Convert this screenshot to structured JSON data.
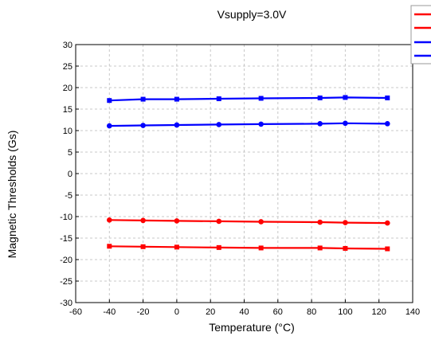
{
  "chart_data": {
    "type": "line",
    "title": "Vsupply=3.0V",
    "xlabel": "Temperature (°C)",
    "ylabel": "Magnetic Thresholds (Gs)",
    "xlim": [
      -60,
      140
    ],
    "ylim": [
      -30,
      30
    ],
    "x_ticks": [
      "-60",
      "-40",
      "-20",
      "0",
      "20",
      "40",
      "60",
      "80",
      "100",
      "120",
      "140"
    ],
    "y_ticks": [
      "30",
      "25",
      "20",
      "15",
      "10",
      "5",
      "0",
      "-5",
      "-10",
      "-15",
      "-20",
      "-25",
      "-30"
    ],
    "grid": true,
    "legend_position": "top-right",
    "series": [
      {
        "color": "#0000ff",
        "marker": "square",
        "x": [
          -40,
          -20,
          0,
          25,
          50,
          85,
          100,
          125
        ],
        "values": [
          17.0,
          17.3,
          17.3,
          17.4,
          17.5,
          17.6,
          17.7,
          17.6
        ]
      },
      {
        "color": "#0000ff",
        "marker": "circle",
        "x": [
          -40,
          -20,
          0,
          25,
          50,
          85,
          100,
          125
        ],
        "values": [
          11.1,
          11.2,
          11.3,
          11.4,
          11.5,
          11.6,
          11.7,
          11.6
        ]
      },
      {
        "color": "#ff0000",
        "marker": "circle",
        "x": [
          -40,
          -20,
          0,
          25,
          50,
          85,
          100,
          125
        ],
        "values": [
          -10.8,
          -10.9,
          -11.0,
          -11.1,
          -11.2,
          -11.3,
          -11.4,
          -11.5
        ]
      },
      {
        "color": "#ff0000",
        "marker": "square",
        "x": [
          -40,
          -20,
          0,
          25,
          50,
          85,
          100,
          125
        ],
        "values": [
          -16.9,
          -17.0,
          -17.1,
          -17.2,
          -17.3,
          -17.3,
          -17.4,
          -17.5
        ]
      }
    ]
  }
}
